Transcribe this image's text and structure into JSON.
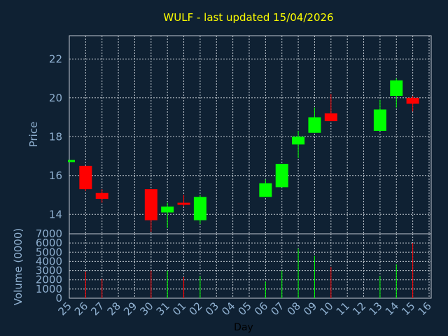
{
  "chart_data": {
    "type": "candlestick",
    "title": "WULF - last updated 15/04/2026",
    "xlabel": "Day",
    "price_panel": {
      "ylabel": "Price",
      "ylim": [
        13,
        23.2
      ],
      "yticks": [
        14,
        16,
        18,
        20,
        22
      ]
    },
    "volume_panel": {
      "ylabel": "Volume (0000)",
      "ylim": [
        0,
        7000
      ],
      "yticks": [
        0,
        1000,
        2000,
        3000,
        4000,
        5000,
        6000,
        7000
      ]
    },
    "categories": [
      "25",
      "26",
      "27",
      "28",
      "29",
      "30",
      "31",
      "01",
      "02",
      "03",
      "04",
      "05",
      "06",
      "07",
      "08",
      "09",
      "10",
      "11",
      "12",
      "13",
      "14",
      "15",
      "16"
    ],
    "candles": [
      {
        "day": "25",
        "open": 16.8,
        "high": 16.8,
        "low": 16.8,
        "close": 16.8,
        "volume": 0
      },
      {
        "day": "26",
        "open": 16.5,
        "high": 16.5,
        "low": 15.2,
        "close": 15.3,
        "volume": 2900
      },
      {
        "day": "27",
        "open": 15.1,
        "high": 15.3,
        "low": 14.6,
        "close": 14.8,
        "volume": 2100
      },
      {
        "day": "30",
        "open": 15.3,
        "high": 15.3,
        "low": 13.1,
        "close": 13.7,
        "volume": 3000
      },
      {
        "day": "31",
        "open": 14.1,
        "high": 14.6,
        "low": 13.3,
        "close": 14.4,
        "volume": 3000
      },
      {
        "day": "01",
        "open": 14.6,
        "high": 15.0,
        "low": 14.4,
        "close": 14.5,
        "volume": 2300
      },
      {
        "day": "02",
        "open": 13.7,
        "high": 15.0,
        "low": 13.5,
        "close": 14.9,
        "volume": 2400
      },
      {
        "day": "06",
        "open": 14.9,
        "high": 15.8,
        "low": 14.9,
        "close": 15.6,
        "volume": 1800
      },
      {
        "day": "07",
        "open": 15.4,
        "high": 16.6,
        "low": 15.4,
        "close": 16.6,
        "volume": 3000
      },
      {
        "day": "08",
        "open": 17.6,
        "high": 18.3,
        "low": 16.9,
        "close": 18.0,
        "volume": 5400
      },
      {
        "day": "09",
        "open": 18.2,
        "high": 19.5,
        "low": 18.2,
        "close": 19.0,
        "volume": 4600
      },
      {
        "day": "10",
        "open": 19.2,
        "high": 20.2,
        "low": 18.8,
        "close": 18.8,
        "volume": 3400
      },
      {
        "day": "13",
        "open": 18.3,
        "high": 19.9,
        "low": 18.3,
        "close": 19.4,
        "volume": 2400
      },
      {
        "day": "14",
        "open": 20.1,
        "high": 21.0,
        "low": 19.5,
        "close": 20.9,
        "volume": 3700
      },
      {
        "day": "15",
        "open": 20.0,
        "high": 20.1,
        "low": 19.3,
        "close": 19.7,
        "volume": 6000
      }
    ],
    "colors": {
      "up": "#00ff00",
      "down": "#ff0000",
      "background": "#0f2133",
      "text": "#8fb0d0",
      "title": "#ffff00"
    },
    "grid": true
  }
}
